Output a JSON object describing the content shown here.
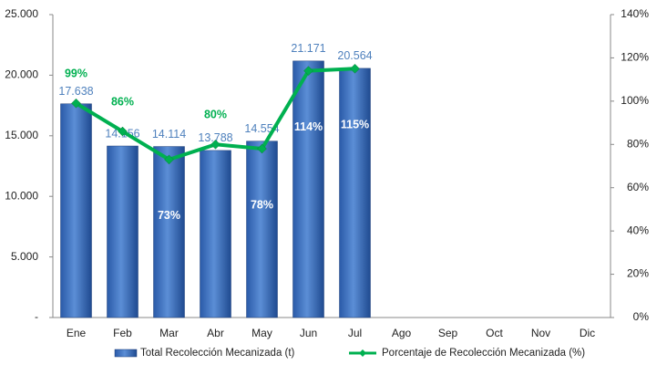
{
  "chart_data": {
    "type": "bar",
    "categories": [
      "Ene",
      "Feb",
      "Mar",
      "Abr",
      "May",
      "Jun",
      "Jul",
      "Ago",
      "Sep",
      "Oct",
      "Nov",
      "Dic"
    ],
    "series": [
      {
        "name": "Total Recolección Mecanizada (t)",
        "color": "#3a6fbf",
        "values": [
          17638,
          14156,
          14114,
          13788,
          14554,
          21171,
          20564,
          null,
          null,
          null,
          null,
          null
        ],
        "value_labels": [
          "17.638",
          "14.156",
          "14.114",
          "13.788",
          "14.554",
          "21.171",
          "20.564",
          null,
          null,
          null,
          null,
          null
        ]
      },
      {
        "name": "Porcentaje de Recolección Mecanizada (%)",
        "type": "line",
        "axis": "y2",
        "color": "#00b050",
        "values": [
          99,
          86,
          73,
          80,
          78,
          114,
          115,
          null,
          null,
          null,
          null,
          null
        ],
        "value_labels": [
          "99%",
          "86%",
          "73%",
          "80%",
          "78%",
          "114%",
          "115%",
          null,
          null,
          null,
          null,
          null
        ]
      }
    ],
    "ylim": [
      0,
      25000
    ],
    "yticks": [
      {
        "value": 0,
        "label": "-"
      },
      {
        "value": 5000,
        "label": "5.000"
      },
      {
        "value": 10000,
        "label": "10.000"
      },
      {
        "value": 15000,
        "label": "15.000"
      },
      {
        "value": 20000,
        "label": "20.000"
      },
      {
        "value": 25000,
        "label": "25.000"
      }
    ],
    "y2lim": [
      0,
      140
    ],
    "y2ticks": [
      {
        "value": 0,
        "label": "0%"
      },
      {
        "value": 20,
        "label": "20%"
      },
      {
        "value": 40,
        "label": "40%"
      },
      {
        "value": 60,
        "label": "60%"
      },
      {
        "value": 80,
        "label": "80%"
      },
      {
        "value": 100,
        "label": "100%"
      },
      {
        "value": 120,
        "label": "120%"
      },
      {
        "value": 140,
        "label": "140%"
      }
    ],
    "grid": false,
    "legend": "bottom"
  }
}
